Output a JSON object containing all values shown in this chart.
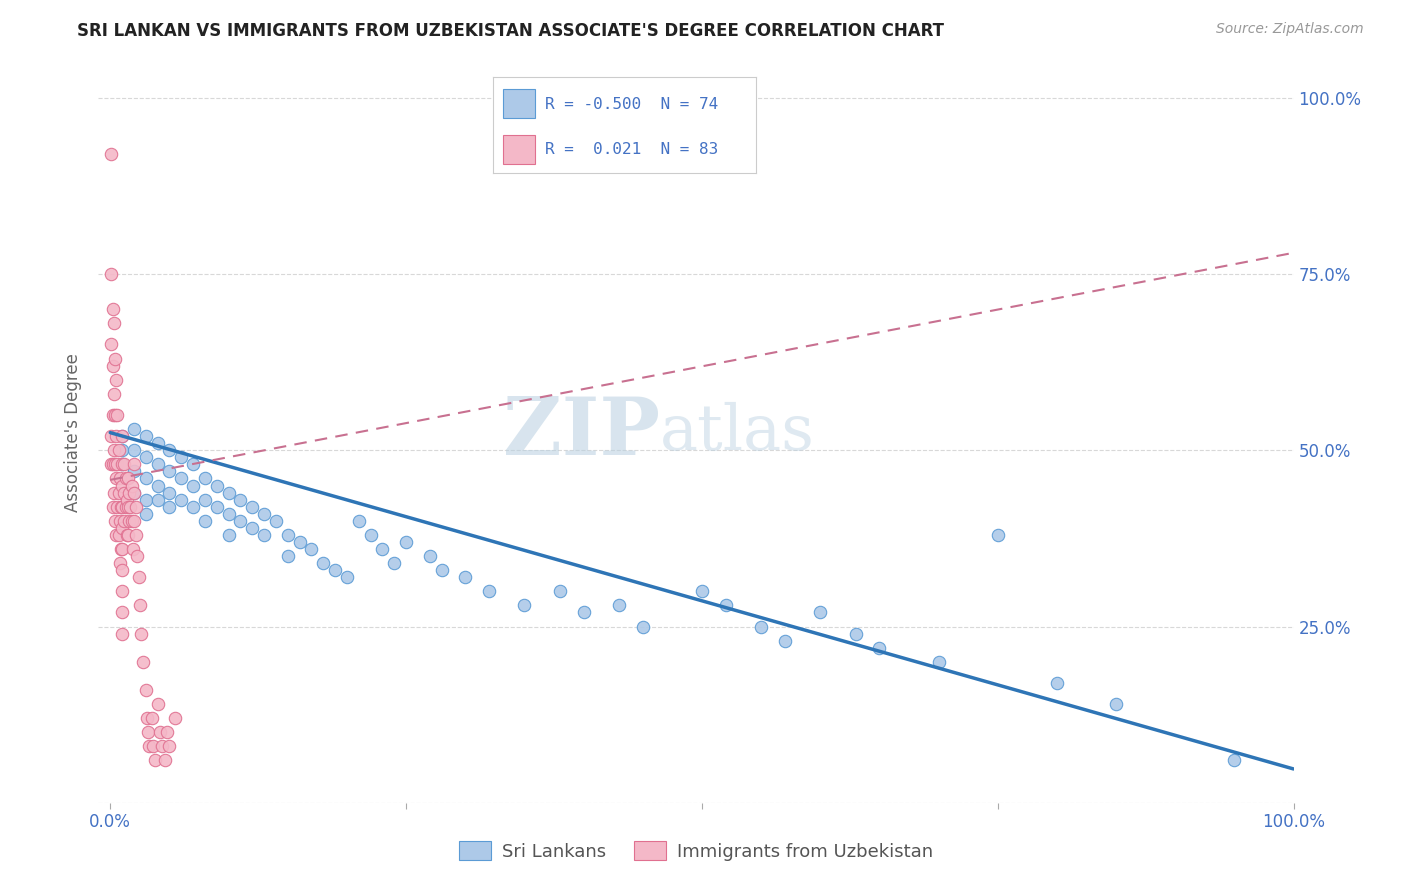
{
  "title": "SRI LANKAN VS IMMIGRANTS FROM UZBEKISTAN ASSOCIATE'S DEGREE CORRELATION CHART",
  "source": "Source: ZipAtlas.com",
  "ylabel": "Associate's Degree",
  "sri_lankans": {
    "R": -0.5,
    "N": 74,
    "color": "#adc9e8",
    "edge_color": "#5b9bd5",
    "line_color": "#2e75b6",
    "x": [
      0.01,
      0.01,
      0.01,
      0.02,
      0.02,
      0.02,
      0.02,
      0.03,
      0.03,
      0.03,
      0.03,
      0.03,
      0.04,
      0.04,
      0.04,
      0.04,
      0.05,
      0.05,
      0.05,
      0.05,
      0.06,
      0.06,
      0.06,
      0.07,
      0.07,
      0.07,
      0.08,
      0.08,
      0.08,
      0.09,
      0.09,
      0.1,
      0.1,
      0.1,
      0.11,
      0.11,
      0.12,
      0.12,
      0.13,
      0.13,
      0.14,
      0.15,
      0.15,
      0.16,
      0.17,
      0.18,
      0.19,
      0.2,
      0.21,
      0.22,
      0.23,
      0.24,
      0.25,
      0.27,
      0.28,
      0.3,
      0.32,
      0.35,
      0.38,
      0.4,
      0.43,
      0.45,
      0.5,
      0.52,
      0.55,
      0.57,
      0.6,
      0.63,
      0.65,
      0.7,
      0.75,
      0.8,
      0.85,
      0.95
    ],
    "y": [
      0.52,
      0.5,
      0.48,
      0.53,
      0.5,
      0.47,
      0.44,
      0.52,
      0.49,
      0.46,
      0.43,
      0.41,
      0.51,
      0.48,
      0.45,
      0.43,
      0.5,
      0.47,
      0.44,
      0.42,
      0.49,
      0.46,
      0.43,
      0.48,
      0.45,
      0.42,
      0.46,
      0.43,
      0.4,
      0.45,
      0.42,
      0.44,
      0.41,
      0.38,
      0.43,
      0.4,
      0.42,
      0.39,
      0.41,
      0.38,
      0.4,
      0.38,
      0.35,
      0.37,
      0.36,
      0.34,
      0.33,
      0.32,
      0.4,
      0.38,
      0.36,
      0.34,
      0.37,
      0.35,
      0.33,
      0.32,
      0.3,
      0.28,
      0.3,
      0.27,
      0.28,
      0.25,
      0.3,
      0.28,
      0.25,
      0.23,
      0.27,
      0.24,
      0.22,
      0.2,
      0.38,
      0.17,
      0.14,
      0.06
    ]
  },
  "uzbekistan": {
    "R": 0.021,
    "N": 83,
    "color": "#f4b8c8",
    "edge_color": "#e07090",
    "line_color": "#c0506878",
    "x": [
      0.001,
      0.001,
      0.001,
      0.001,
      0.001,
      0.002,
      0.002,
      0.002,
      0.002,
      0.002,
      0.003,
      0.003,
      0.003,
      0.003,
      0.004,
      0.004,
      0.004,
      0.004,
      0.005,
      0.005,
      0.005,
      0.005,
      0.006,
      0.006,
      0.006,
      0.007,
      0.007,
      0.007,
      0.008,
      0.008,
      0.008,
      0.009,
      0.009,
      0.01,
      0.01,
      0.01,
      0.01,
      0.01,
      0.01,
      0.01,
      0.01,
      0.01,
      0.01,
      0.012,
      0.012,
      0.012,
      0.013,
      0.013,
      0.014,
      0.014,
      0.015,
      0.015,
      0.015,
      0.016,
      0.016,
      0.017,
      0.018,
      0.018,
      0.019,
      0.02,
      0.02,
      0.02,
      0.022,
      0.022,
      0.023,
      0.024,
      0.025,
      0.026,
      0.028,
      0.03,
      0.031,
      0.032,
      0.033,
      0.035,
      0.036,
      0.038,
      0.04,
      0.042,
      0.044,
      0.046,
      0.048,
      0.05,
      0.055
    ],
    "y": [
      0.92,
      0.75,
      0.65,
      0.52,
      0.48,
      0.7,
      0.62,
      0.55,
      0.48,
      0.42,
      0.68,
      0.58,
      0.5,
      0.44,
      0.63,
      0.55,
      0.48,
      0.4,
      0.6,
      0.52,
      0.46,
      0.38,
      0.55,
      0.48,
      0.42,
      0.5,
      0.44,
      0.38,
      0.46,
      0.4,
      0.34,
      0.42,
      0.36,
      0.52,
      0.48,
      0.45,
      0.42,
      0.39,
      0.36,
      0.33,
      0.3,
      0.27,
      0.24,
      0.48,
      0.44,
      0.4,
      0.46,
      0.42,
      0.43,
      0.38,
      0.46,
      0.42,
      0.38,
      0.44,
      0.4,
      0.42,
      0.45,
      0.4,
      0.36,
      0.48,
      0.44,
      0.4,
      0.42,
      0.38,
      0.35,
      0.32,
      0.28,
      0.24,
      0.2,
      0.16,
      0.12,
      0.1,
      0.08,
      0.12,
      0.08,
      0.06,
      0.14,
      0.1,
      0.08,
      0.06,
      0.1,
      0.08,
      0.12
    ]
  },
  "blue_line": {
    "x0": 0.0,
    "y0": 0.525,
    "x1": 1.0,
    "y1": 0.048
  },
  "pink_line": {
    "x0": 0.0,
    "y0": 0.458,
    "x1": 1.0,
    "y1": 0.78
  },
  "xlim": [
    -0.01,
    1.0
  ],
  "ylim": [
    0.0,
    1.05
  ],
  "xticks": [
    0.0,
    0.25,
    0.5,
    0.75,
    1.0
  ],
  "xticklabels": [
    "0.0%",
    "",
    "",
    "",
    "100.0%"
  ],
  "yticks": [
    0.0,
    0.25,
    0.5,
    0.75,
    1.0
  ],
  "yticklabels_right": [
    "",
    "25.0%",
    "50.0%",
    "75.0%",
    "100.0%"
  ],
  "background_color": "#ffffff",
  "grid_color": "#d8d8d8",
  "watermark_zip": "ZIP",
  "watermark_atlas": "atlas",
  "watermark_color": "#ccd9e8",
  "title_fontsize": 12,
  "source_fontsize": 10,
  "tick_fontsize": 12,
  "legend_label1": "Sri Lankans",
  "legend_label2": "Immigrants from Uzbekistan"
}
